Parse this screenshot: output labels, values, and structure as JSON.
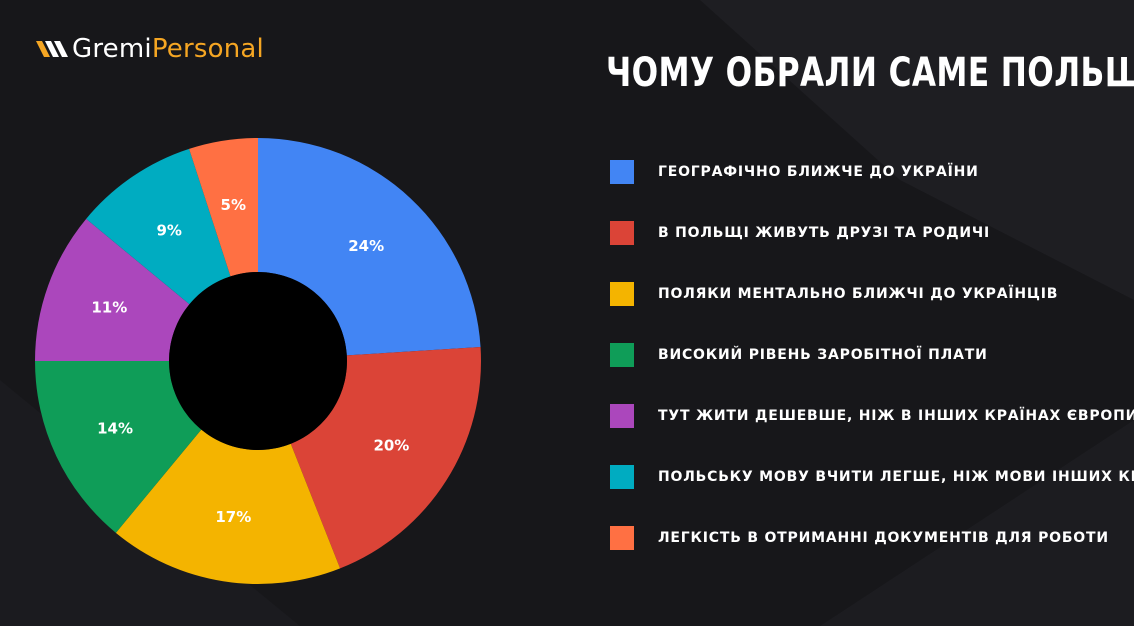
{
  "brand": {
    "name_part1": "Gremi",
    "name_part2": "Personal",
    "accent": "#f5a623",
    "icon": "brand-chevrons-icon"
  },
  "title": "ЧОМУ ОБРАЛИ САМЕ ПОЛЬЩУ?",
  "chart_data": {
    "type": "pie",
    "categories": [
      "ГЕОГРАФІЧНО БЛИЖЧЕ ДО УКРАЇНИ",
      "В ПОЛЬЩІ ЖИВУТЬ ДРУЗІ ТА РОДИЧІ",
      "ПОЛЯКИ МЕНТАЛЬНО БЛИЖЧІ ДО УКРАЇНЦІВ",
      "ВИСОКИЙ РІВЕНЬ ЗАРОБІТНОЇ ПЛАТИ",
      "ТУТ ЖИТИ ДЕШЕВШЕ, НІЖ В ІНШИХ КРАЇНАХ ЄВРОПИ",
      "ПОЛЬСЬКУ МОВУ ВЧИТИ ЛЕГШЕ, НІЖ МОВИ ІНШИХ КРАЇН",
      "ЛЕГКІСТЬ В ОТРИМАННІ ДОКУМЕНТІВ ДЛЯ РОБОТИ"
    ],
    "values": [
      24,
      20,
      17,
      14,
      11,
      9,
      5
    ],
    "labels": [
      "24%",
      "20%",
      "17%",
      "14%",
      "11%",
      "9%",
      "5%"
    ],
    "colors": [
      "#4285f4",
      "#db4437",
      "#f4b400",
      "#0f9d58",
      "#ab47bc",
      "#00acc1",
      "#ff7043"
    ],
    "donut": true,
    "legend_position": "right"
  }
}
